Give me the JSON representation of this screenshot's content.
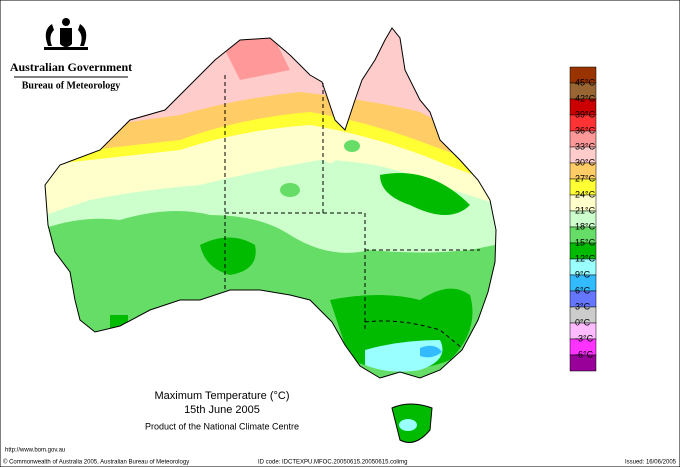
{
  "header": {
    "government": "Australian Government",
    "bureau": "Bureau of Meteorology"
  },
  "title": {
    "line1": "Maximum Temperature (°C)",
    "line2": "15th June 2005",
    "line3": "Product of the National Climate Centre"
  },
  "legend": {
    "colors": [
      "#993300",
      "#996633",
      "#cc0000",
      "#ff3333",
      "#ff9999",
      "#ffcccc",
      "#ffcc66",
      "#ffff33",
      "#ffffcc",
      "#ccffcc",
      "#66dd66",
      "#00bb00",
      "#99ffff",
      "#33bbff",
      "#6677ff",
      "#cccccc",
      "#ffbbff",
      "#ff33ff",
      "#990099"
    ],
    "labels": [
      "45°C",
      "42°C",
      "39°C",
      "36°C",
      "33°C",
      "30°C",
      "27°C",
      "24°C",
      "21°C",
      "18°C",
      "15°C",
      "12°C",
      "9°C",
      "6°C",
      "3°C",
      "0°C",
      "-3°C",
      "-6°C"
    ]
  },
  "footer": {
    "url": "http://www.bom.gov.au",
    "copyright": "© Commonwealth of Australia 2005, Australian Bureau of Meteorology",
    "id_code": "ID code: IDCTEXPU.MFOC.20050615.20050615.colimg",
    "issued": "Issued: 16/06/2005"
  }
}
